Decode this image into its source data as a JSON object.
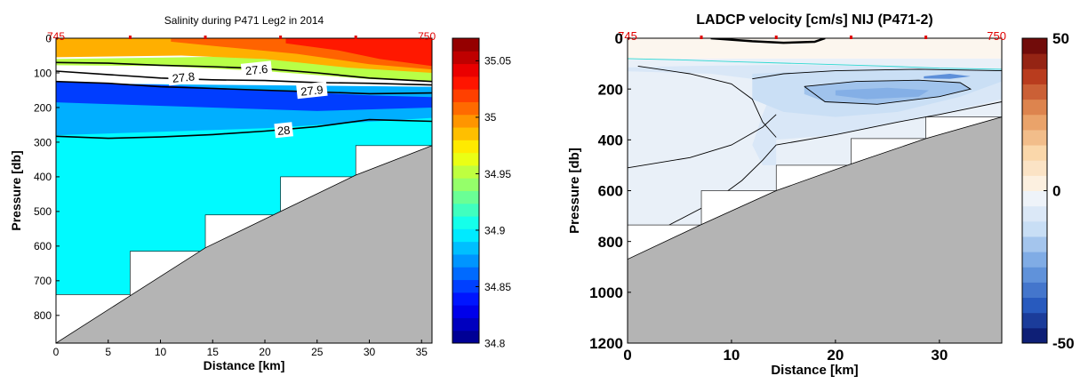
{
  "chart_data": [
    {
      "type": "contour-section",
      "title": "Salinity during P471 Leg2 in 2014",
      "xlabel": "Distance [km]",
      "ylabel": "Pressure [db]",
      "xlim": [
        0,
        36
      ],
      "ylim": [
        880,
        0
      ],
      "y_reversed": true,
      "xticks": [
        0,
        5,
        10,
        15,
        20,
        25,
        30,
        35
      ],
      "yticks": [
        0,
        100,
        200,
        300,
        400,
        500,
        600,
        700,
        800
      ],
      "station_labels": [
        {
          "x": 0,
          "label": "745"
        },
        {
          "x": 35.5,
          "label": "750"
        }
      ],
      "station_ticks": [
        7.1,
        14.3,
        21.5,
        28.7
      ],
      "colorbar": {
        "min": 34.8,
        "max": 35.07,
        "ticks": [
          34.8,
          34.85,
          34.9,
          34.95,
          35,
          35.05
        ],
        "colormap": "jet"
      },
      "profile_bottoms": [
        {
          "x0": 0,
          "x1": 7.1,
          "depth": 740
        },
        {
          "x0": 7.1,
          "x1": 14.3,
          "depth": 615
        },
        {
          "x0": 14.3,
          "x1": 21.5,
          "depth": 510
        },
        {
          "x0": 21.5,
          "x1": 28.7,
          "depth": 400
        },
        {
          "x0": 28.7,
          "x1": 36,
          "depth": 310
        }
      ],
      "seafloor": [
        [
          0,
          880
        ],
        [
          7,
          745
        ],
        [
          14.3,
          605
        ],
        [
          21.5,
          500
        ],
        [
          28.7,
          395
        ],
        [
          36,
          310
        ]
      ],
      "density_contours": [
        {
          "label": "27.6",
          "x": [
            0,
            5,
            10,
            15,
            20,
            25,
            30,
            36
          ],
          "y": [
            70,
            72,
            78,
            82,
            88,
            100,
            115,
            125
          ]
        },
        {
          "label": "27.8",
          "x": [
            0,
            5,
            10,
            15,
            20,
            25,
            30,
            36
          ],
          "y": [
            95,
            105,
            115,
            120,
            122,
            128,
            130,
            135
          ]
        },
        {
          "label": "27.9",
          "x": [
            0,
            5,
            10,
            15,
            20,
            25,
            30,
            36
          ],
          "y": [
            125,
            130,
            140,
            145,
            150,
            155,
            160,
            158
          ]
        },
        {
          "label": "28",
          "x": [
            0,
            5,
            10,
            15,
            20,
            25,
            30,
            36
          ],
          "y": [
            283,
            289,
            285,
            278,
            268,
            255,
            235,
            240
          ]
        }
      ],
      "contour_labels": [
        {
          "label": "27.8",
          "x": 12.2,
          "y": 112
        },
        {
          "label": "27.6",
          "x": 19.2,
          "y": 90
        },
        {
          "label": "27.9",
          "x": 24.5,
          "y": 150
        },
        {
          "label": "28",
          "x": 21.8,
          "y": 265
        }
      ],
      "salinity_regions": [
        {
          "value": 34.9,
          "poly": [
            [
              0,
              240
            ],
            [
              36,
              210
            ],
            [
              36,
              310
            ],
            [
              28.7,
              310
            ],
            [
              28.7,
              400
            ],
            [
              21.5,
              400
            ],
            [
              21.5,
              510
            ],
            [
              14.3,
              510
            ],
            [
              14.3,
              615
            ],
            [
              7.1,
              615
            ],
            [
              7.1,
              740
            ],
            [
              0,
              740
            ]
          ]
        },
        {
          "value": 34.88,
          "poly": [
            [
              0,
              130
            ],
            [
              36,
              140
            ],
            [
              36,
              230
            ],
            [
              20,
              260
            ],
            [
              0,
              280
            ]
          ]
        },
        {
          "value": 34.85,
          "poly": [
            [
              0,
              125
            ],
            [
              10,
              135
            ],
            [
              20,
              150
            ],
            [
              30,
              165
            ],
            [
              36,
              170
            ],
            [
              36,
              200
            ],
            [
              25,
              210
            ],
            [
              15,
              200
            ],
            [
              5,
              190
            ],
            [
              0,
              185
            ]
          ]
        },
        {
          "value": 34.95,
          "poly": [
            [
              0,
              60
            ],
            [
              36,
              45
            ],
            [
              36,
              125
            ],
            [
              30,
              118
            ],
            [
              20,
              95
            ],
            [
              10,
              80
            ],
            [
              0,
              78
            ]
          ]
        },
        {
          "value": 34.99,
          "poly": [
            [
              0,
              0
            ],
            [
              36,
              0
            ],
            [
              36,
              100
            ],
            [
              28,
              85
            ],
            [
              20,
              60
            ],
            [
              12,
              50
            ],
            [
              0,
              55
            ]
          ]
        },
        {
          "value": 35.01,
          "poly": [
            [
              11,
              0
            ],
            [
              36,
              0
            ],
            [
              36,
              90
            ],
            [
              30,
              75
            ],
            [
              23,
              45
            ],
            [
              16,
              25
            ],
            [
              11,
              10
            ]
          ]
        },
        {
          "value": 35.03,
          "poly": [
            [
              22,
              0
            ],
            [
              36,
              0
            ],
            [
              36,
              80
            ],
            [
              31,
              60
            ],
            [
              27,
              35
            ],
            [
              22,
              15
            ]
          ]
        }
      ]
    },
    {
      "type": "contour-section",
      "title": "LADCP velocity [cm/s] NIJ (P471-2)",
      "xlabel": "Distance [km]",
      "ylabel": "Pressure [db]",
      "xlim": [
        0,
        36
      ],
      "ylim": [
        1200,
        0
      ],
      "y_reversed": true,
      "xticks": [
        0,
        10,
        20,
        30
      ],
      "yticks": [
        0,
        200,
        400,
        600,
        800,
        1000,
        1200
      ],
      "station_labels": [
        {
          "x": 0,
          "label": "745"
        },
        {
          "x": 35.5,
          "label": "750"
        }
      ],
      "station_ticks": [
        7.1,
        14.3,
        21.5,
        28.7
      ],
      "colorbar": {
        "min": -50,
        "max": 50,
        "ticks": [
          -50,
          0,
          50
        ],
        "colormap": "blue-white-red"
      },
      "profile_bottoms": [
        {
          "x0": 0,
          "x1": 7.1,
          "depth": 735
        },
        {
          "x0": 7.1,
          "x1": 14.3,
          "depth": 600
        },
        {
          "x0": 14.3,
          "x1": 21.5,
          "depth": 500
        },
        {
          "x0": 21.5,
          "x1": 28.7,
          "depth": 395
        },
        {
          "x0": 28.7,
          "x1": 36,
          "depth": 310
        }
      ],
      "seafloor": [
        [
          0,
          870
        ],
        [
          7,
          735
        ],
        [
          14.3,
          600
        ],
        [
          21.5,
          495
        ],
        [
          28.7,
          395
        ],
        [
          36,
          310
        ]
      ],
      "velocity_regions": [
        {
          "value": -4,
          "poly": [
            [
              0,
              80
            ],
            [
              36,
              80
            ],
            [
              36,
              310
            ],
            [
              28.7,
              310
            ],
            [
              28.7,
              395
            ],
            [
              21.5,
              395
            ],
            [
              21.5,
              500
            ],
            [
              14.3,
              500
            ],
            [
              14.3,
              600
            ],
            [
              7.1,
              600
            ],
            [
              7.1,
              735
            ],
            [
              0,
              735
            ]
          ]
        },
        {
          "value": 0,
          "poly": [
            [
              0,
              0
            ],
            [
              36,
              0
            ],
            [
              36,
              80
            ],
            [
              0,
              80
            ]
          ]
        },
        {
          "value": -8,
          "poly": [
            [
              0,
              130
            ],
            [
              8,
              140
            ],
            [
              12,
              160
            ],
            [
              14,
              200
            ],
            [
              13,
              300
            ],
            [
              12,
              420
            ],
            [
              13,
              500
            ],
            [
              14.3,
              500
            ],
            [
              14.3,
              400
            ],
            [
              20,
              380
            ],
            [
              26,
              330
            ],
            [
              30,
              300
            ],
            [
              36,
              240
            ],
            [
              36,
              120
            ],
            [
              25,
              110
            ],
            [
              15,
              105
            ],
            [
              5,
              110
            ],
            [
              0,
              115
            ]
          ]
        },
        {
          "value": -12,
          "poly": [
            [
              12,
              140
            ],
            [
              20,
              125
            ],
            [
              28,
              120
            ],
            [
              36,
              125
            ],
            [
              36,
              170
            ],
            [
              32,
              230
            ],
            [
              26,
              290
            ],
            [
              20,
              310
            ],
            [
              15,
              290
            ],
            [
              12,
              240
            ]
          ]
        },
        {
          "value": -18,
          "poly": [
            [
              17,
              190
            ],
            [
              22,
              170
            ],
            [
              28,
              165
            ],
            [
              32,
              175
            ],
            [
              33,
              200
            ],
            [
              30,
              230
            ],
            [
              24,
              260
            ],
            [
              19,
              250
            ],
            [
              17,
              220
            ]
          ]
        },
        {
          "value": -22,
          "poly": [
            [
              20,
              205
            ],
            [
              25,
              195
            ],
            [
              29,
              205
            ],
            [
              28,
              230
            ],
            [
              23,
              240
            ],
            [
              20,
              225
            ]
          ]
        },
        {
          "value": -28,
          "poly": [
            [
              28.5,
              150
            ],
            [
              31,
              140
            ],
            [
              33,
              150
            ],
            [
              31,
              160
            ],
            [
              28.5,
              158
            ]
          ]
        }
      ],
      "velocity_contours": [
        {
          "x": [
            0,
            5,
            10,
            15,
            20,
            25,
            30,
            36
          ],
          "y": [
            80,
            85,
            92,
            98,
            104,
            110,
            118,
            122
          ],
          "color": "#2fd9d2"
        },
        {
          "x": [
            0,
            6,
            10,
            13,
            14.3
          ],
          "y": [
            510,
            470,
            420,
            350,
            300
          ]
        },
        {
          "x": [
            4,
            8,
            11,
            13,
            14.3
          ],
          "y": [
            735,
            650,
            560,
            480,
            420
          ]
        },
        {
          "x": [
            1,
            6,
            10,
            12,
            13,
            14.3
          ],
          "y": [
            110,
            140,
            180,
            240,
            330,
            390
          ]
        },
        {
          "x": [
            14.3,
            20,
            26,
            30,
            36
          ],
          "y": [
            420,
            380,
            330,
            300,
            250
          ]
        },
        {
          "x": [
            12,
            15,
            20,
            28,
            36
          ],
          "y": [
            160,
            140,
            128,
            122,
            128
          ]
        },
        {
          "x": [
            17,
            22,
            28,
            32,
            33,
            30,
            24,
            19,
            17
          ],
          "y": [
            190,
            170,
            165,
            175,
            200,
            230,
            260,
            250,
            190
          ]
        },
        {
          "x": [
            8,
            12,
            15,
            18,
            19
          ],
          "y": [
            0,
            12,
            18,
            14,
            0
          ],
          "color": "#000000",
          "width": 2.5
        }
      ]
    }
  ]
}
